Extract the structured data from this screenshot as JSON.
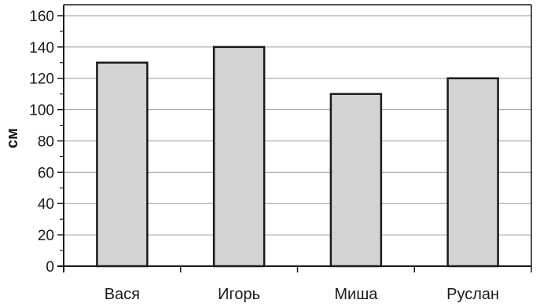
{
  "chart_data": {
    "type": "bar",
    "categories": [
      "Вася",
      "Игорь",
      "Миша",
      "Руслан"
    ],
    "values": [
      130,
      140,
      110,
      120
    ],
    "title": "",
    "xlabel": "",
    "ylabel": "см",
    "ylim": [
      0,
      160
    ],
    "yticks": [
      0,
      20,
      40,
      60,
      80,
      100,
      120,
      140,
      160
    ],
    "grid": true,
    "legend": "none",
    "colors": {
      "bar_fill": "#d3d3d3",
      "bar_stroke": "#1a1a1a",
      "grid": "#9a9a9a",
      "axis": "#1a1a1a"
    }
  }
}
